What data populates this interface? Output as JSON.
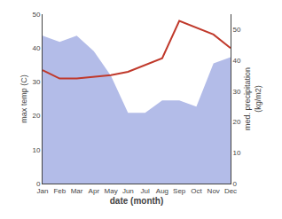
{
  "chart_data": {
    "type": "line",
    "xlabel": "date (month)",
    "ylabel": "max temp (C)",
    "y2label": "med. precipitation\n(kg/m2)",
    "categories": [
      "Jan",
      "Feb",
      "Mar",
      "Apr",
      "May",
      "Jun",
      "Jul",
      "Aug",
      "Sep",
      "Oct",
      "Nov",
      "Dec"
    ],
    "series": [
      {
        "type": "area",
        "axis": "y2",
        "color": "#b3bce8",
        "values": [
          48,
          46,
          48,
          43,
          35,
          23,
          23,
          27,
          27,
          25,
          39,
          41
        ]
      },
      {
        "type": "line",
        "color": "#c0392b",
        "values": [
          33.5,
          31,
          31,
          31.5,
          32,
          33,
          35,
          37,
          48,
          46,
          44,
          40
        ]
      }
    ],
    "ylim": [
      0,
      50
    ],
    "yticks": [
      0,
      10,
      20,
      30,
      40,
      50
    ],
    "y2lim": [
      0,
      55
    ],
    "y2ticks": [
      0,
      10,
      20,
      30,
      40,
      50
    ],
    "grid": false
  }
}
